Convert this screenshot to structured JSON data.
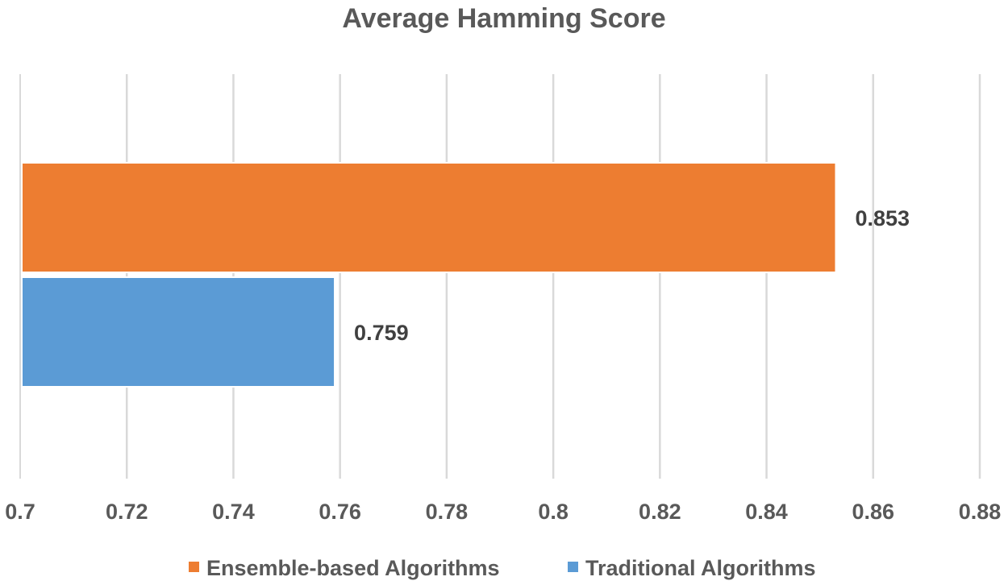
{
  "chart_data": {
    "type": "bar",
    "orientation": "horizontal",
    "title": "Average Hamming Score",
    "xlim": [
      0.7,
      0.88
    ],
    "xticks": [
      0.7,
      0.72,
      0.74,
      0.76,
      0.78,
      0.8,
      0.82,
      0.84,
      0.86,
      0.88
    ],
    "xtick_labels": [
      "0.7",
      "0.72",
      "0.74",
      "0.76",
      "0.78",
      "0.8",
      "0.82",
      "0.84",
      "0.86",
      "0.88"
    ],
    "grid": true,
    "legend_position": "bottom",
    "series": [
      {
        "name": "Ensemble-based Algorithms",
        "value": 0.853,
        "label": "0.853",
        "color": "#ED7D31"
      },
      {
        "name": "Traditional Algorithms",
        "value": 0.759,
        "label": "0.759",
        "color": "#5B9BD5"
      }
    ]
  }
}
